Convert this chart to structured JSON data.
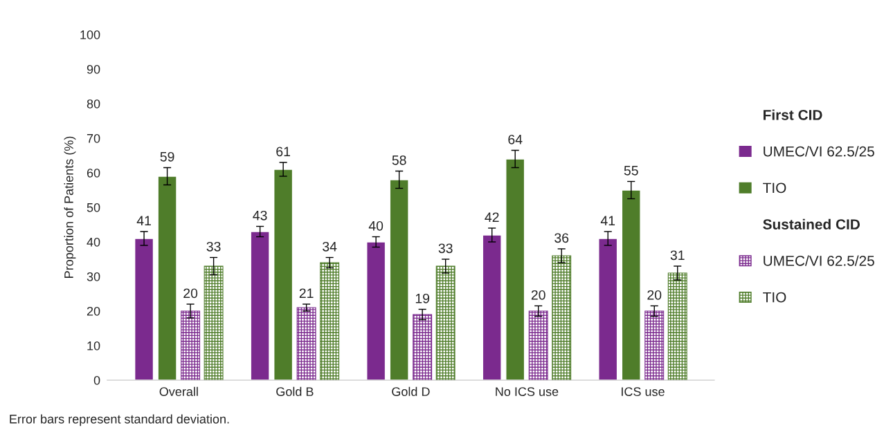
{
  "chart_data": {
    "type": "bar",
    "ylabel": "Proportion of Patients (%)",
    "categories": [
      "Overall",
      "Gold B",
      "Gold D",
      "No ICS use",
      "ICS use"
    ],
    "series": [
      {
        "name": "UMEC/VI 62.5/25",
        "color": "#7b2a8e",
        "values": [
          41,
          43,
          40,
          42,
          41
        ],
        "errors": [
          2,
          1.5,
          1.5,
          2,
          2
        ]
      },
      {
        "name": "TIO",
        "color": "#4f7d2a",
        "values": [
          59,
          61,
          58,
          64,
          55
        ],
        "errors": [
          2.5,
          2,
          2.5,
          2.5,
          2.5
        ]
      },
      {
        "name": "UMEC/VI 62.5/25",
        "color": "#7b2a8e",
        "values": [
          20,
          21,
          19,
          20,
          20
        ],
        "errors": [
          2,
          1,
          1.5,
          1.5,
          1.5
        ]
      },
      {
        "name": "TIO",
        "color": "#4f7d2a",
        "values": [
          33,
          34,
          33,
          36,
          31
        ],
        "errors": [
          2.5,
          1.5,
          2,
          2,
          2
        ]
      }
    ],
    "ylim": [
      0,
      100
    ],
    "yticks": [
      0,
      10,
      20,
      30,
      40,
      50,
      60,
      70,
      80,
      90,
      100
    ],
    "data_labels": true,
    "grid": false,
    "legend": "right",
    "annotations": [
      "First CID",
      "Sustained CID",
      "Error bars represent standard deviation."
    ]
  }
}
